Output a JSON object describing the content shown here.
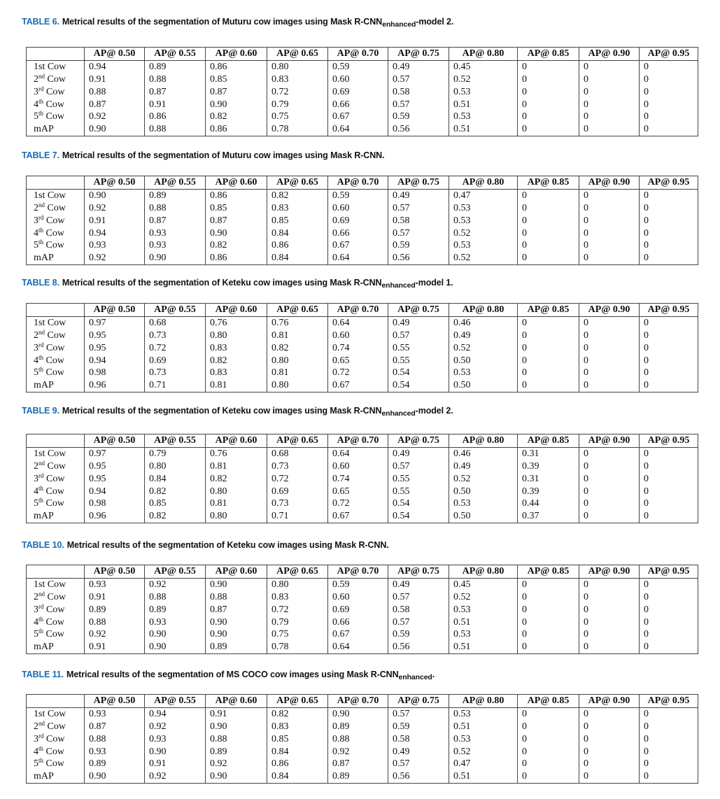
{
  "accent_color": "#1c6bb3",
  "columns": [
    "",
    "AP@ 0.50",
    "AP@ 0.55",
    "AP@ 0.60",
    "AP@ 0.65",
    "AP@ 0.70",
    "AP@ 0.75",
    "AP@ 0.80",
    "AP@ 0.85",
    "AP@ 0.90",
    "AP@ 0.95"
  ],
  "row_labels": [
    {
      "num": "1st",
      "sup": "",
      "rest": " Cow"
    },
    {
      "num": "2",
      "sup": "nd",
      "rest": " Cow"
    },
    {
      "num": "3",
      "sup": "rd",
      "rest": " Cow"
    },
    {
      "num": "4",
      "sup": "th",
      "rest": " Cow"
    },
    {
      "num": "5",
      "sup": "th",
      "rest": " Cow"
    },
    {
      "num": "mAP",
      "sup": "",
      "rest": ""
    }
  ],
  "tables": [
    {
      "label": "TABLE 6.",
      "caption": "Metrical results of the segmentation of Muturu cow images using Mask R-CNN",
      "caption_sub": "enhanced",
      "caption_end": "-model 2.",
      "rows": [
        [
          "0.94",
          "0.89",
          "0.86",
          "0.80",
          "0.59",
          "0.49",
          "0.45",
          "0",
          "0",
          "0"
        ],
        [
          "0.91",
          "0.88",
          "0.85",
          "0.83",
          "0.60",
          "0.57",
          "0.52",
          "0",
          "0",
          "0"
        ],
        [
          "0.88",
          "0.87",
          "0.87",
          "0.72",
          "0.69",
          "0.58",
          "0.53",
          "0",
          "0",
          "0"
        ],
        [
          "0.87",
          "0.91",
          "0.90",
          "0.79",
          "0.66",
          "0.57",
          "0.51",
          "0",
          "0",
          "0"
        ],
        [
          "0.92",
          "0.86",
          "0.82",
          "0.75",
          "0.67",
          "0.59",
          "0.53",
          "0",
          "0",
          "0"
        ],
        [
          "0.90",
          "0.88",
          "0.86",
          "0.78",
          "0.64",
          "0.56",
          "0.51",
          "0",
          "0",
          "0"
        ]
      ]
    },
    {
      "label": "TABLE 7.",
      "caption": "Metrical results of the segmentation of Muturu cow images using Mask R-CNN.",
      "caption_sub": "",
      "caption_end": "",
      "rows": [
        [
          "0.90",
          "0.89",
          "0.86",
          "0.82",
          "0.59",
          "0.49",
          "0.47",
          "0",
          "0",
          "0"
        ],
        [
          "0.92",
          "0.88",
          "0.85",
          "0.83",
          "0.60",
          "0.57",
          "0.53",
          "0",
          "0",
          "0"
        ],
        [
          "0.91",
          "0.87",
          "0.87",
          "0.85",
          "0.69",
          "0.58",
          "0.53",
          "0",
          "0",
          "0"
        ],
        [
          "0.94",
          "0.93",
          "0.90",
          "0.84",
          "0.66",
          "0.57",
          "0.52",
          "0",
          "0",
          "0"
        ],
        [
          "0.93",
          "0.93",
          "0.82",
          "0.86",
          "0.67",
          "0.59",
          "0.53",
          "0",
          "0",
          "0"
        ],
        [
          "0.92",
          "0.90",
          "0.86",
          "0.84",
          "0.64",
          "0.56",
          "0.52",
          "0",
          "0",
          "0"
        ]
      ]
    },
    {
      "label": "TABLE 8.",
      "caption": "Metrical results of the segmentation of Keteku cow images using Mask R-CNN",
      "caption_sub": "enhanced",
      "caption_end": "-model 1.",
      "rows": [
        [
          "0.97",
          "0.68",
          "0.76",
          "0.76",
          "0.64",
          "0.49",
          "0.46",
          "0",
          "0",
          "0"
        ],
        [
          "0.95",
          "0.73",
          "0.80",
          "0.81",
          "0.60",
          "0.57",
          "0.49",
          "0",
          "0",
          "0"
        ],
        [
          "0.95",
          "0.72",
          "0.83",
          "0.82",
          "0.74",
          "0.55",
          "0.52",
          "0",
          "0",
          "0"
        ],
        [
          "0.94",
          "0.69",
          "0.82",
          "0.80",
          "0.65",
          "0.55",
          "0.50",
          "0",
          "0",
          "0"
        ],
        [
          "0.98",
          "0.73",
          "0.83",
          "0.81",
          "0.72",
          "0.54",
          "0.53",
          "0",
          "0",
          "0"
        ],
        [
          "0.96",
          "0.71",
          "0.81",
          "0.80",
          "0.67",
          "0.54",
          "0.50",
          "0",
          "0",
          "0"
        ]
      ]
    },
    {
      "label": "TABLE 9.",
      "caption": "Metrical results of the segmentation of Keteku cow images using Mask R-CNN",
      "caption_sub": "enhanced",
      "caption_end": "-model 2.",
      "rows": [
        [
          "0.97",
          "0.79",
          "0.76",
          "0.68",
          "0.64",
          "0.49",
          "0.46",
          "0.31",
          "0",
          "0"
        ],
        [
          "0.95",
          "0.80",
          "0.81",
          "0.73",
          "0.60",
          "0.57",
          "0.49",
          "0.39",
          "0",
          "0"
        ],
        [
          "0.95",
          "0.84",
          "0.82",
          "0.72",
          "0.74",
          "0.55",
          "0.52",
          "0.31",
          "0",
          "0"
        ],
        [
          "0.94",
          "0.82",
          "0.80",
          "0.69",
          "0.65",
          "0.55",
          "0.50",
          "0.39",
          "0",
          "0"
        ],
        [
          "0.98",
          "0.85",
          "0.81",
          "0.73",
          "0.72",
          "0.54",
          "0.53",
          "0.44",
          "0",
          "0"
        ],
        [
          "0.96",
          "0.82",
          "0.80",
          "0.71",
          "0.67",
          "0.54",
          "0.50",
          "0.37",
          "0",
          "0"
        ]
      ]
    },
    {
      "label": "TABLE 10.",
      "caption": "Metrical results of the segmentation of Keteku cow images using Mask R-CNN.",
      "caption_sub": "",
      "caption_end": "",
      "rows": [
        [
          "0.93",
          "0.92",
          "0.90",
          "0.80",
          "0.59",
          "0.49",
          "0.45",
          "0",
          "0",
          "0"
        ],
        [
          "0.91",
          "0.88",
          "0.88",
          "0.83",
          "0.60",
          "0.57",
          "0.52",
          "0",
          "0",
          "0"
        ],
        [
          "0.89",
          "0.89",
          "0.87",
          "0.72",
          "0.69",
          "0.58",
          "0.53",
          "0",
          "0",
          "0"
        ],
        [
          "0.88",
          "0.93",
          "0.90",
          "0.79",
          "0.66",
          "0.57",
          "0.51",
          "0",
          "0",
          "0"
        ],
        [
          "0.92",
          "0.90",
          "0.90",
          "0.75",
          "0.67",
          "0.59",
          "0.53",
          "0",
          "0",
          "0"
        ],
        [
          "0.91",
          "0.90",
          "0.89",
          "0.78",
          "0.64",
          "0.56",
          "0.51",
          "0",
          "0",
          "0"
        ]
      ]
    },
    {
      "label": "TABLE 11.",
      "caption": "Metrical results of the segmentation of MS COCO cow images using Mask R-CNN",
      "caption_sub": "enhanced",
      "caption_end": ".",
      "rows": [
        [
          "0.93",
          "0.94",
          "0.91",
          "0.82",
          "0.90",
          "0.57",
          "0.53",
          "0",
          "0",
          "0"
        ],
        [
          "0.87",
          "0.92",
          "0.90",
          "0.83",
          "0.89",
          "0.59",
          "0.51",
          "0",
          "0",
          "0"
        ],
        [
          "0.88",
          "0.93",
          "0.88",
          "0.85",
          "0.88",
          "0.58",
          "0.53",
          "0",
          "0",
          "0"
        ],
        [
          "0.93",
          "0.90",
          "0.89",
          "0.84",
          "0.92",
          "0.49",
          "0.52",
          "0",
          "0",
          "0"
        ],
        [
          "0.89",
          "0.91",
          "0.92",
          "0.86",
          "0.87",
          "0.57",
          "0.47",
          "0",
          "0",
          "0"
        ],
        [
          "0.90",
          "0.92",
          "0.90",
          "0.84",
          "0.89",
          "0.56",
          "0.51",
          "0",
          "0",
          "0"
        ]
      ]
    }
  ]
}
